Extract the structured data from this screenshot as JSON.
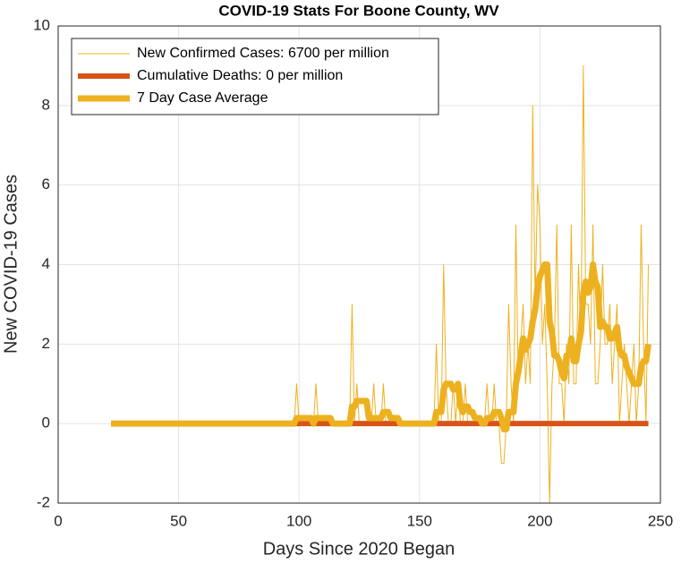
{
  "chart_data": {
    "type": "line",
    "title": "COVID-19 Stats For Boone County, WV",
    "x_label": "Days Since 2020 Began",
    "y_label": "New COVID-19 Cases",
    "xlim": [
      0,
      250
    ],
    "xticks": [
      0,
      50,
      100,
      150,
      200,
      250
    ],
    "ylim": [
      -2,
      10
    ],
    "yticks": [
      -2,
      0,
      2,
      4,
      6,
      8,
      10
    ],
    "grid": true,
    "legend": "upper left",
    "x": [
      22,
      23,
      24,
      25,
      26,
      27,
      28,
      29,
      30,
      31,
      32,
      33,
      34,
      35,
      36,
      37,
      38,
      39,
      40,
      41,
      42,
      43,
      44,
      45,
      46,
      47,
      48,
      49,
      50,
      51,
      52,
      53,
      54,
      55,
      56,
      57,
      58,
      59,
      60,
      61,
      62,
      63,
      64,
      65,
      66,
      67,
      68,
      69,
      70,
      71,
      72,
      73,
      74,
      75,
      76,
      77,
      78,
      79,
      80,
      81,
      82,
      83,
      84,
      85,
      86,
      87,
      88,
      89,
      90,
      91,
      92,
      93,
      94,
      95,
      96,
      97,
      98,
      99,
      100,
      101,
      102,
      103,
      104,
      105,
      106,
      107,
      108,
      109,
      110,
      111,
      112,
      113,
      114,
      115,
      116,
      117,
      118,
      119,
      120,
      121,
      122,
      123,
      124,
      125,
      126,
      127,
      128,
      129,
      130,
      131,
      132,
      133,
      134,
      135,
      136,
      137,
      138,
      139,
      140,
      141,
      142,
      143,
      144,
      145,
      146,
      147,
      148,
      149,
      150,
      151,
      152,
      153,
      154,
      155,
      156,
      157,
      158,
      159,
      160,
      161,
      162,
      163,
      164,
      165,
      166,
      167,
      168,
      169,
      170,
      171,
      172,
      173,
      174,
      175,
      176,
      177,
      178,
      179,
      180,
      181,
      182,
      183,
      184,
      185,
      186,
      187,
      188,
      189,
      190,
      191,
      192,
      193,
      194,
      195,
      196,
      197,
      198,
      199,
      200,
      201,
      202,
      203,
      204,
      205,
      206,
      207,
      208,
      209,
      210,
      211,
      212,
      213,
      214,
      215,
      216,
      217,
      218,
      219,
      220,
      221,
      222,
      223,
      224,
      225,
      226,
      227,
      228,
      229,
      230,
      231,
      232,
      233,
      234,
      235,
      236,
      237,
      238,
      239,
      240,
      241,
      242,
      243,
      244,
      245
    ],
    "series": [
      {
        "name": "New Confirmed Cases: 6700 per million",
        "color": "#EDB120",
        "width": 1,
        "values": [
          0,
          0,
          0,
          0,
          0,
          0,
          0,
          0,
          0,
          0,
          0,
          0,
          0,
          0,
          0,
          0,
          0,
          0,
          0,
          0,
          0,
          0,
          0,
          0,
          0,
          0,
          0,
          0,
          0,
          0,
          0,
          0,
          0,
          0,
          0,
          0,
          0,
          0,
          0,
          0,
          0,
          0,
          0,
          0,
          0,
          0,
          0,
          0,
          0,
          0,
          0,
          0,
          0,
          0,
          0,
          0,
          0,
          0,
          0,
          0,
          0,
          0,
          0,
          0,
          0,
          0,
          0,
          0,
          0,
          0,
          0,
          0,
          0,
          0,
          0,
          0,
          0,
          1,
          0,
          0,
          0,
          0,
          0,
          0,
          0,
          1,
          0,
          0,
          0,
          0,
          0,
          0,
          0,
          0,
          0,
          0,
          0,
          0,
          0,
          0,
          3,
          0,
          1,
          0,
          0,
          0,
          0,
          0,
          0,
          1,
          0,
          0,
          0,
          1,
          0,
          0,
          0,
          0,
          0,
          0,
          0,
          0,
          0,
          0,
          0,
          0,
          0,
          0,
          0,
          0,
          0,
          0,
          0,
          0,
          0,
          2,
          0,
          0,
          4,
          1,
          0,
          0,
          1,
          0,
          1,
          0,
          0,
          1,
          0,
          0,
          0,
          0,
          0,
          0,
          0,
          0,
          1,
          0,
          0,
          1,
          0,
          0,
          -1,
          -1,
          0,
          3,
          1,
          0,
          5,
          1,
          2,
          3,
          1,
          2,
          1,
          8,
          3,
          6,
          5,
          2,
          3,
          1,
          -2,
          1,
          2,
          5,
          1,
          1,
          0,
          2,
          1,
          5,
          1,
          1,
          4,
          2,
          9,
          3,
          3,
          2,
          5,
          1,
          1,
          2,
          4,
          2,
          2,
          3,
          1,
          2,
          3,
          0,
          1,
          2,
          1,
          0,
          1,
          2,
          0,
          1,
          5,
          2,
          0,
          4
        ]
      },
      {
        "name": "Cumulative Deaths: 0 per million",
        "color": "#D95319",
        "width": 6,
        "x": [
          22,
          245
        ],
        "values": [
          0,
          0
        ]
      },
      {
        "name": "7 Day Case Average",
        "color": "#EDB120",
        "width": 7,
        "values": [
          0,
          0,
          0,
          0,
          0,
          0,
          0,
          0,
          0,
          0,
          0,
          0,
          0,
          0,
          0,
          0,
          0,
          0,
          0,
          0,
          0,
          0,
          0,
          0,
          0,
          0,
          0,
          0,
          0,
          0,
          0,
          0,
          0,
          0,
          0,
          0,
          0,
          0,
          0,
          0,
          0,
          0,
          0,
          0,
          0,
          0,
          0,
          0,
          0,
          0,
          0,
          0,
          0,
          0,
          0,
          0,
          0,
          0,
          0,
          0,
          0,
          0,
          0,
          0,
          0,
          0,
          0,
          0,
          0,
          0,
          0,
          0,
          0,
          0,
          0,
          0,
          0,
          0.14,
          0.14,
          0.14,
          0.14,
          0.14,
          0.14,
          0.14,
          0,
          0.14,
          0.14,
          0.14,
          0.14,
          0.14,
          0.14,
          0.14,
          0,
          0,
          0,
          0,
          0,
          0,
          0,
          0,
          0.43,
          0.43,
          0.57,
          0.57,
          0.57,
          0.57,
          0.57,
          0.14,
          0.14,
          0.14,
          0.14,
          0.14,
          0.14,
          0.29,
          0.29,
          0.29,
          0.14,
          0.14,
          0.14,
          0.14,
          0,
          0,
          0,
          0,
          0,
          0,
          0,
          0,
          0,
          0,
          0,
          0,
          0,
          0,
          0,
          0.29,
          0.29,
          0.29,
          0.86,
          1,
          1,
          1,
          0.86,
          0.86,
          1,
          0.43,
          0.29,
          0.43,
          0.43,
          0.29,
          0.29,
          0.14,
          0.14,
          0.14,
          0,
          0,
          0.14,
          0.14,
          0.14,
          0.29,
          0.29,
          0.29,
          0.14,
          -0.14,
          -0.14,
          0.29,
          0.29,
          0.29,
          1,
          1.29,
          1.71,
          2.14,
          1.86,
          2,
          2.14,
          2.57,
          2.86,
          3.43,
          3.71,
          3.86,
          4,
          4,
          2.57,
          2.29,
          1.71,
          1.71,
          1.57,
          1.29,
          1.14,
          1.71,
          1.71,
          2.14,
          1.57,
          1.57,
          2,
          2.29,
          3.29,
          3.57,
          3.29,
          3.43,
          4,
          3.57,
          3.43,
          2.43,
          2.57,
          2.43,
          2.43,
          2.14,
          2.14,
          2.29,
          2.43,
          1.86,
          1.71,
          1.71,
          1.43,
          1.29,
          1.14,
          1,
          1,
          1,
          1.43,
          1.57,
          1.57,
          2
        ]
      }
    ]
  }
}
